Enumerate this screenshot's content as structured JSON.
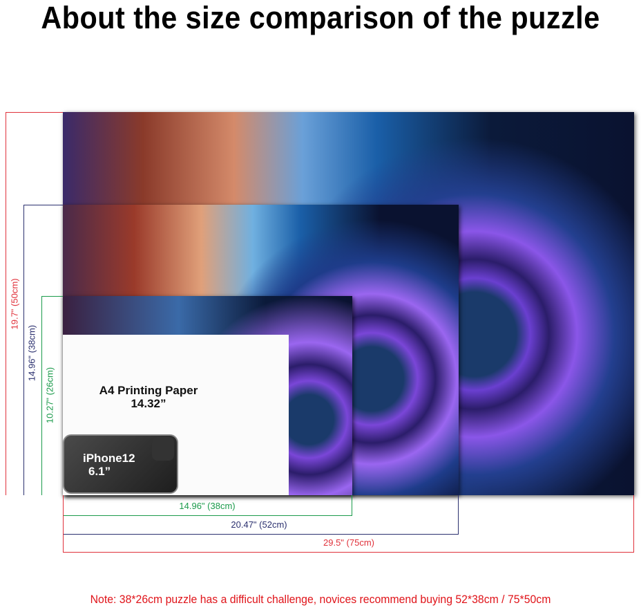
{
  "title": "About the size comparison of the puzzle",
  "a4": {
    "label": "A4 Printing Paper",
    "size": "14.32”"
  },
  "phone": {
    "label": "iPhone12",
    "size": "6.1”"
  },
  "dimensions": {
    "large": {
      "height": "19.7\" (50cm)",
      "width": "29.5\" (75cm)",
      "color": "#e0303a"
    },
    "medium": {
      "height": "14.96\" (38cm)",
      "width": "20.47\" (52cm)",
      "color": "#2a2f6e"
    },
    "small": {
      "height": "10.27\" (26cm)",
      "width": "14.96\" (38cm)",
      "color": "#1a9a4a"
    }
  },
  "note": "Note:  38*26cm puzzle has a difficult challenge, novices recommend buying 52*38cm / 75*50cm"
}
